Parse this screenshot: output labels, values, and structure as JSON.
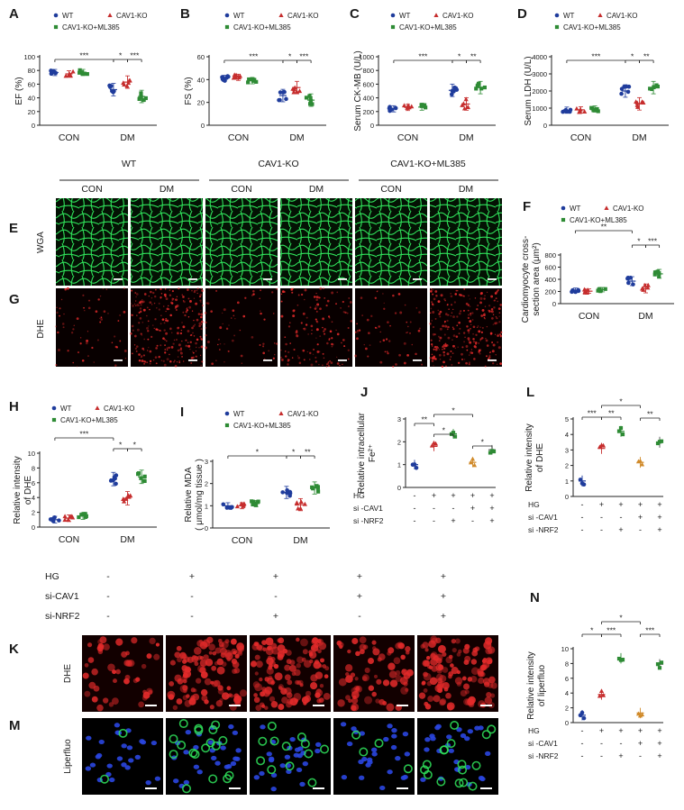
{
  "panels": {
    "A": "A",
    "B": "B",
    "C": "C",
    "D": "D",
    "E": "E",
    "F": "F",
    "G": "G",
    "H": "H",
    "I": "I",
    "J": "J",
    "K": "K",
    "L": "L",
    "M": "M",
    "N": "N"
  },
  "legend3": [
    "WT",
    "CAV1-KO",
    "CAV1-KO+ML385"
  ],
  "colors": {
    "WT": "#1f3c9c",
    "CAV1-KO": "#c62d2d",
    "CAV1-KO+ML385": "#2e8b35",
    "ORANGE": "#d08a2a",
    "GREEN_MEM": "#2fe35a",
    "RED_DHE": "#e32a2a",
    "NUCLEI": "#2a46e0"
  },
  "groups": [
    "CON",
    "DM"
  ],
  "image_row": {
    "group_headers": [
      "WT",
      "CAV1-KO",
      "CAV1-KO+ML385"
    ],
    "sub_headers": [
      "CON",
      "DM",
      "CON",
      "DM",
      "CON",
      "DM"
    ],
    "row_labels": [
      "WGA",
      "DHE"
    ]
  },
  "bottom_images": {
    "treatment_labels": [
      "HG",
      "si-CAV1",
      "si-NRF2"
    ],
    "treatment_rows": [
      [
        "-",
        "+",
        "+",
        "+",
        "+"
      ],
      [
        "-",
        "-",
        "-",
        "+",
        "+"
      ],
      [
        "-",
        "-",
        "+",
        "-",
        "+"
      ]
    ],
    "row_labels": [
      "DHE",
      "Liperfluo"
    ]
  },
  "chart_data": [
    {
      "panel": "A",
      "type": "scatter",
      "ylabel": "EF (%)",
      "ylim": [
        0,
        100
      ],
      "yticks": [
        0,
        20,
        40,
        60,
        80,
        100
      ],
      "categories": [
        "CON",
        "DM"
      ],
      "series": [
        {
          "name": "WT",
          "values": [
            77,
            52
          ]
        },
        {
          "name": "CAV1-KO",
          "values": [
            75,
            63
          ]
        },
        {
          "name": "CAV1-KO+ML385",
          "values": [
            77,
            42
          ]
        }
      ],
      "significance": [
        [
          "***",
          0,
          3
        ],
        [
          "*",
          3,
          4
        ],
        [
          "***",
          4,
          5
        ]
      ]
    },
    {
      "panel": "B",
      "type": "scatter",
      "ylabel": "FS (%)",
      "ylim": [
        0,
        60
      ],
      "yticks": [
        0,
        20,
        40,
        60
      ],
      "categories": [
        "CON",
        "DM"
      ],
      "series": [
        {
          "name": "WT",
          "values": [
            41,
            26
          ]
        },
        {
          "name": "CAV1-KO",
          "values": [
            42,
            33
          ]
        },
        {
          "name": "CAV1-KO+ML385",
          "values": [
            39,
            22
          ]
        }
      ],
      "significance": [
        [
          "***",
          0,
          3
        ],
        [
          "*",
          3,
          4
        ],
        [
          "***",
          4,
          5
        ]
      ]
    },
    {
      "panel": "C",
      "type": "scatter",
      "ylabel": "Serum CK-MB (U/L)",
      "ylim": [
        0,
        1000
      ],
      "yticks": [
        0,
        200,
        400,
        600,
        800,
        1000
      ],
      "categories": [
        "CON",
        "DM"
      ],
      "series": [
        {
          "name": "WT",
          "values": [
            240,
            510
          ]
        },
        {
          "name": "CAV1-KO",
          "values": [
            260,
            310
          ]
        },
        {
          "name": "CAV1-KO+ML385",
          "values": [
            265,
            550
          ]
        }
      ],
      "significance": [
        [
          "***",
          0,
          3
        ],
        [
          "*",
          3,
          4
        ],
        [
          "**",
          4,
          5
        ]
      ]
    },
    {
      "panel": "D",
      "type": "scatter",
      "ylabel": "Serum LDH (U/L)",
      "ylim": [
        0,
        4000
      ],
      "yticks": [
        0,
        1000,
        2000,
        3000,
        4000
      ],
      "categories": [
        "CON",
        "DM"
      ],
      "series": [
        {
          "name": "WT",
          "values": [
            880,
            2000
          ]
        },
        {
          "name": "CAV1-KO",
          "values": [
            900,
            1250
          ]
        },
        {
          "name": "CAV1-KO+ML385",
          "values": [
            950,
            2200
          ]
        }
      ],
      "significance": [
        [
          "***",
          0,
          3
        ],
        [
          "*",
          3,
          4
        ],
        [
          "**",
          4,
          5
        ]
      ]
    },
    {
      "panel": "F",
      "type": "scatter",
      "ylabel": "Cardiomyocyte cross-section area (μm²)",
      "ylim": [
        0,
        800
      ],
      "yticks": [
        0,
        200,
        400,
        600,
        800
      ],
      "categories": [
        "CON",
        "DM"
      ],
      "series": [
        {
          "name": "WT",
          "values": [
            220,
            370
          ]
        },
        {
          "name": "CAV1-KO",
          "values": [
            205,
            250
          ]
        },
        {
          "name": "CAV1-KO+ML385",
          "values": [
            230,
            490
          ]
        }
      ],
      "significance": [
        [
          "**",
          0,
          3
        ],
        [
          "*",
          3,
          4
        ],
        [
          "***",
          4,
          5
        ]
      ]
    },
    {
      "panel": "H",
      "type": "scatter",
      "ylabel": "Relative intensity of DHE",
      "ylim": [
        0,
        10
      ],
      "yticks": [
        0,
        2,
        4,
        6,
        8,
        10
      ],
      "categories": [
        "CON",
        "DM"
      ],
      "series": [
        {
          "name": "WT",
          "values": [
            1.0,
            6.5
          ]
        },
        {
          "name": "CAV1-KO",
          "values": [
            1.2,
            3.9
          ]
        },
        {
          "name": "CAV1-KO+ML385",
          "values": [
            1.5,
            6.8
          ]
        }
      ],
      "significance": [
        [
          "***",
          0,
          3
        ],
        [
          "*",
          3,
          4
        ],
        [
          "*",
          4,
          5
        ]
      ]
    },
    {
      "panel": "I",
      "type": "scatter",
      "ylabel": "Relative MDA ( μmol/mg tissue )",
      "ylim": [
        0,
        3
      ],
      "yticks": [
        0,
        1,
        2,
        3
      ],
      "categories": [
        "CON",
        "DM"
      ],
      "series": [
        {
          "name": "WT",
          "values": [
            1.0,
            1.6
          ]
        },
        {
          "name": "CAV1-KO",
          "values": [
            1.0,
            1.05
          ]
        },
        {
          "name": "CAV1-KO+ML385",
          "values": [
            1.1,
            1.8
          ]
        }
      ],
      "significance": [
        [
          "*",
          0,
          3
        ],
        [
          "*",
          3,
          4
        ],
        [
          "**",
          4,
          5
        ]
      ]
    },
    {
      "panel": "J",
      "type": "scatter",
      "ylabel": "Relative intracellular Fe²⁺",
      "ylim": [
        0,
        3
      ],
      "yticks": [
        0,
        1,
        2,
        3
      ],
      "treatments": {
        "HG": [
          "-",
          "+",
          "+",
          "+",
          "+"
        ],
        "si -CAV1": [
          "-",
          "-",
          "-",
          "+",
          "+"
        ],
        "si -NRF2": [
          "-",
          "-",
          "+",
          "-",
          "+"
        ]
      },
      "values": [
        1.0,
        1.8,
        2.35,
        1.1,
        1.65
      ],
      "significance": [
        [
          "**",
          0,
          1
        ],
        [
          "*",
          1,
          2
        ],
        [
          "*",
          1,
          3
        ],
        [
          "*",
          3,
          4
        ]
      ]
    },
    {
      "panel": "L",
      "type": "scatter",
      "ylabel": "Relative intensity of DHE",
      "ylim": [
        0,
        5
      ],
      "yticks": [
        0,
        1,
        2,
        3,
        4,
        5
      ],
      "treatments": {
        "HG": [
          "-",
          "+",
          "+",
          "+",
          "+"
        ],
        "si -CAV1": [
          "-",
          "-",
          "-",
          "+",
          "+"
        ],
        "si -NRF2": [
          "-",
          "-",
          "+",
          "-",
          "+"
        ]
      },
      "values": [
        1.0,
        3.1,
        4.2,
        2.2,
        3.5
      ],
      "significance": [
        [
          "***",
          0,
          1
        ],
        [
          "**",
          1,
          2
        ],
        [
          "*",
          1,
          3
        ],
        [
          "**",
          3,
          4
        ]
      ]
    },
    {
      "panel": "N",
      "type": "scatter",
      "ylabel": "Relative intensity of liperfluo",
      "ylim": [
        0,
        10
      ],
      "yticks": [
        0,
        2,
        4,
        6,
        8,
        10
      ],
      "treatments": {
        "HG": [
          "-",
          "+",
          "+",
          "+",
          "+"
        ],
        "si -CAV1": [
          "-",
          "-",
          "-",
          "+",
          "+"
        ],
        "si -NRF2": [
          "-",
          "-",
          "+",
          "-",
          "+"
        ]
      },
      "values": [
        1.0,
        3.8,
        8.7,
        1.3,
        7.9
      ],
      "significance": [
        [
          "*",
          0,
          1
        ],
        [
          "***",
          1,
          2
        ],
        [
          "*",
          1,
          3
        ],
        [
          "***",
          3,
          4
        ]
      ]
    }
  ]
}
